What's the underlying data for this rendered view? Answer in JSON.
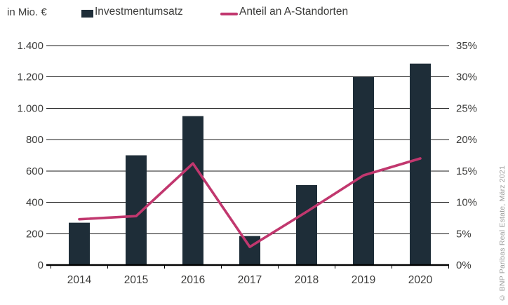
{
  "header": {
    "unit_label": "in Mio. €",
    "legend": [
      {
        "label": "Investmentumsatz",
        "marker": "square",
        "color": "#1e2d38"
      },
      {
        "label": "Anteil an A-Standorten",
        "marker": "line",
        "color": "#c1376e"
      }
    ]
  },
  "footer_note": "© BNP Paribas Real Estate, März 2021",
  "colors": {
    "bar": "#1e2d38",
    "line": "#c1376e",
    "text": "#3c3c3b",
    "grid": "#1a1a1a",
    "axis": "#000000",
    "note": "#9d9d9c"
  },
  "chart_data": {
    "type": "bar",
    "subtype": "bar+line combo",
    "categories": [
      "2014",
      "2015",
      "2016",
      "2017",
      "2018",
      "2019",
      "2020"
    ],
    "series": [
      {
        "name": "Investmentumsatz",
        "type": "bar",
        "axis": "left",
        "unit": "Mio. €",
        "color": "#1e2d38",
        "values": [
          270,
          700,
          950,
          185,
          510,
          1200,
          1285
        ]
      },
      {
        "name": "Anteil an A-Standorten",
        "type": "line",
        "axis": "right",
        "unit": "%",
        "color": "#c1376e",
        "values": [
          7.3,
          7.8,
          16.2,
          2.9,
          8.5,
          14.3,
          17
        ]
      }
    ],
    "y_left": {
      "label": "in Mio. €",
      "min": 0,
      "max": 1400,
      "step": 200,
      "tick_labels": [
        "0",
        "200",
        "400",
        "600",
        "800",
        "1.000",
        "1.200",
        "1.400"
      ]
    },
    "y_right": {
      "label": "Anteil an A-Standorten",
      "min": 0,
      "max": 35,
      "step": 5,
      "tick_labels": [
        "0%",
        "5%",
        "10%",
        "15%",
        "20%",
        "25%",
        "30%",
        "35%"
      ]
    },
    "grid": true,
    "legend_position": "top"
  }
}
